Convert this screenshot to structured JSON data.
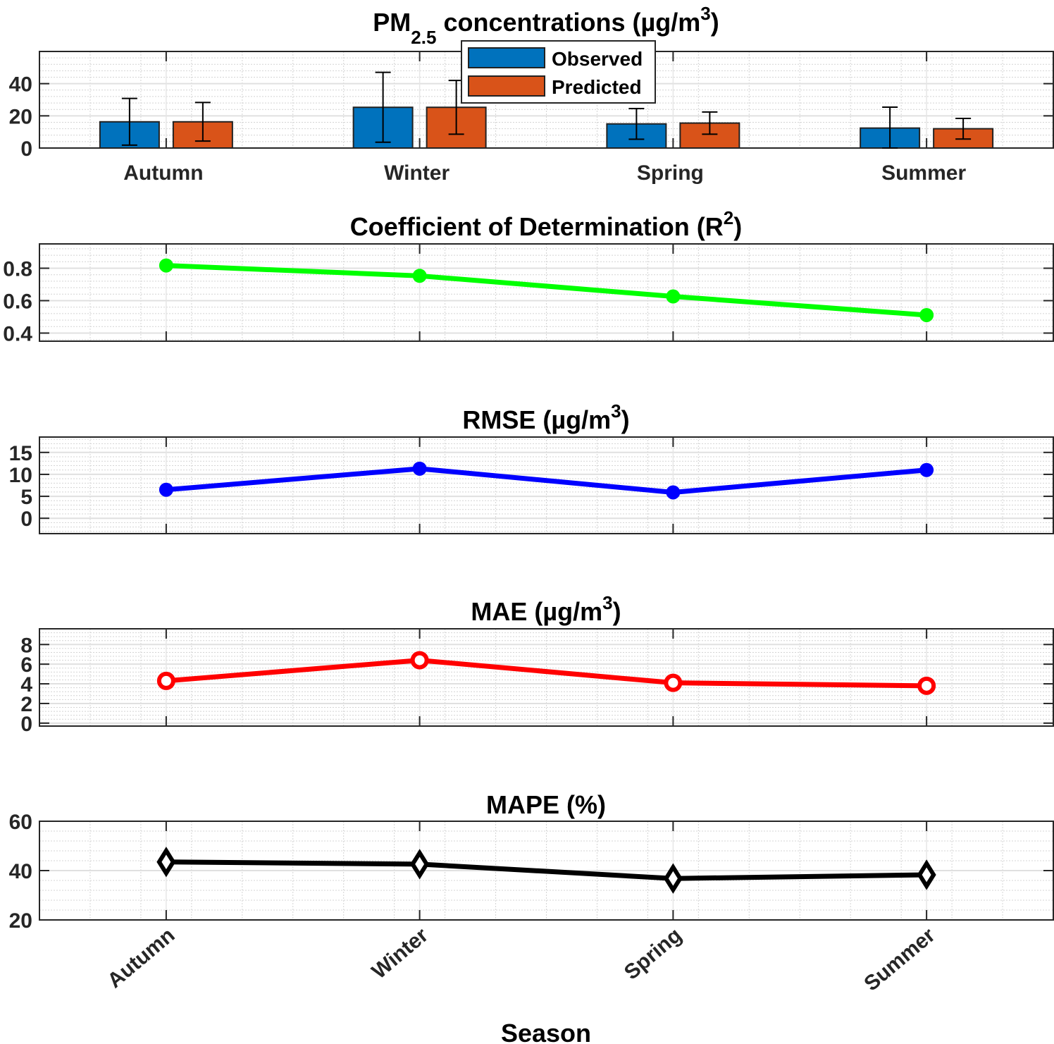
{
  "categories": [
    "Autumn",
    "Winter",
    "Spring",
    "Summer"
  ],
  "xlabel": "Season",
  "chart_data": [
    {
      "type": "bar",
      "title_parts": {
        "main": "PM",
        "sub": "2.5",
        "rest": " concentrations (µg/m",
        "sup": "3",
        "end": ")"
      },
      "categories": [
        "Autumn",
        "Winter",
        "Spring",
        "Summer"
      ],
      "ylim": [
        0,
        60
      ],
      "yticks": [
        0,
        20,
        40
      ],
      "grid": true,
      "legend": "top-center",
      "series": [
        {
          "name": "Observed",
          "color": "#0072BD",
          "values": [
            16.3,
            25.3,
            15.0,
            12.4
          ],
          "error": [
            14.5,
            21.7,
            9.5,
            13.0
          ]
        },
        {
          "name": "Predicted",
          "color": "#D95319",
          "values": [
            16.3,
            25.3,
            15.5,
            12.0
          ],
          "error": [
            12.0,
            16.7,
            6.9,
            6.4
          ]
        }
      ]
    },
    {
      "type": "line",
      "title_parts": {
        "main": "Coefficient of Determination (R",
        "sup": "2",
        "end": ")"
      },
      "ylim": [
        0.35,
        0.95
      ],
      "yticks": [
        0.4,
        0.6,
        0.8
      ],
      "ytick_labels": [
        "0.4",
        "0.6",
        "0.8"
      ],
      "grid": true,
      "color": "#00FF00",
      "marker": "filled-circle",
      "values": [
        0.817,
        0.753,
        0.626,
        0.511
      ]
    },
    {
      "type": "line",
      "title_parts": {
        "main": "RMSE (µg/m",
        "sup": "3",
        "end": ")"
      },
      "ylim": [
        -3.5,
        18.5
      ],
      "yticks": [
        0,
        5,
        10,
        15
      ],
      "grid": true,
      "color": "#0000FF",
      "marker": "filled-circle",
      "values": [
        6.5,
        11.3,
        5.9,
        11.0
      ]
    },
    {
      "type": "line",
      "title_parts": {
        "main": "MAE (µg/m",
        "sup": "3",
        "end": ")"
      },
      "ylim": [
        -0.3,
        9.6
      ],
      "yticks": [
        0,
        2,
        4,
        6,
        8
      ],
      "grid": true,
      "color": "#FF0000",
      "marker": "open-circle",
      "values": [
        4.3,
        6.4,
        4.1,
        3.8
      ]
    },
    {
      "type": "line",
      "title_parts": {
        "main": "MAPE (%)"
      },
      "ylim": [
        20,
        60
      ],
      "yticks": [
        20,
        40,
        60
      ],
      "grid": true,
      "color": "#000000",
      "marker": "diamond",
      "values": [
        43.5,
        42.6,
        36.8,
        38.3
      ]
    }
  ]
}
